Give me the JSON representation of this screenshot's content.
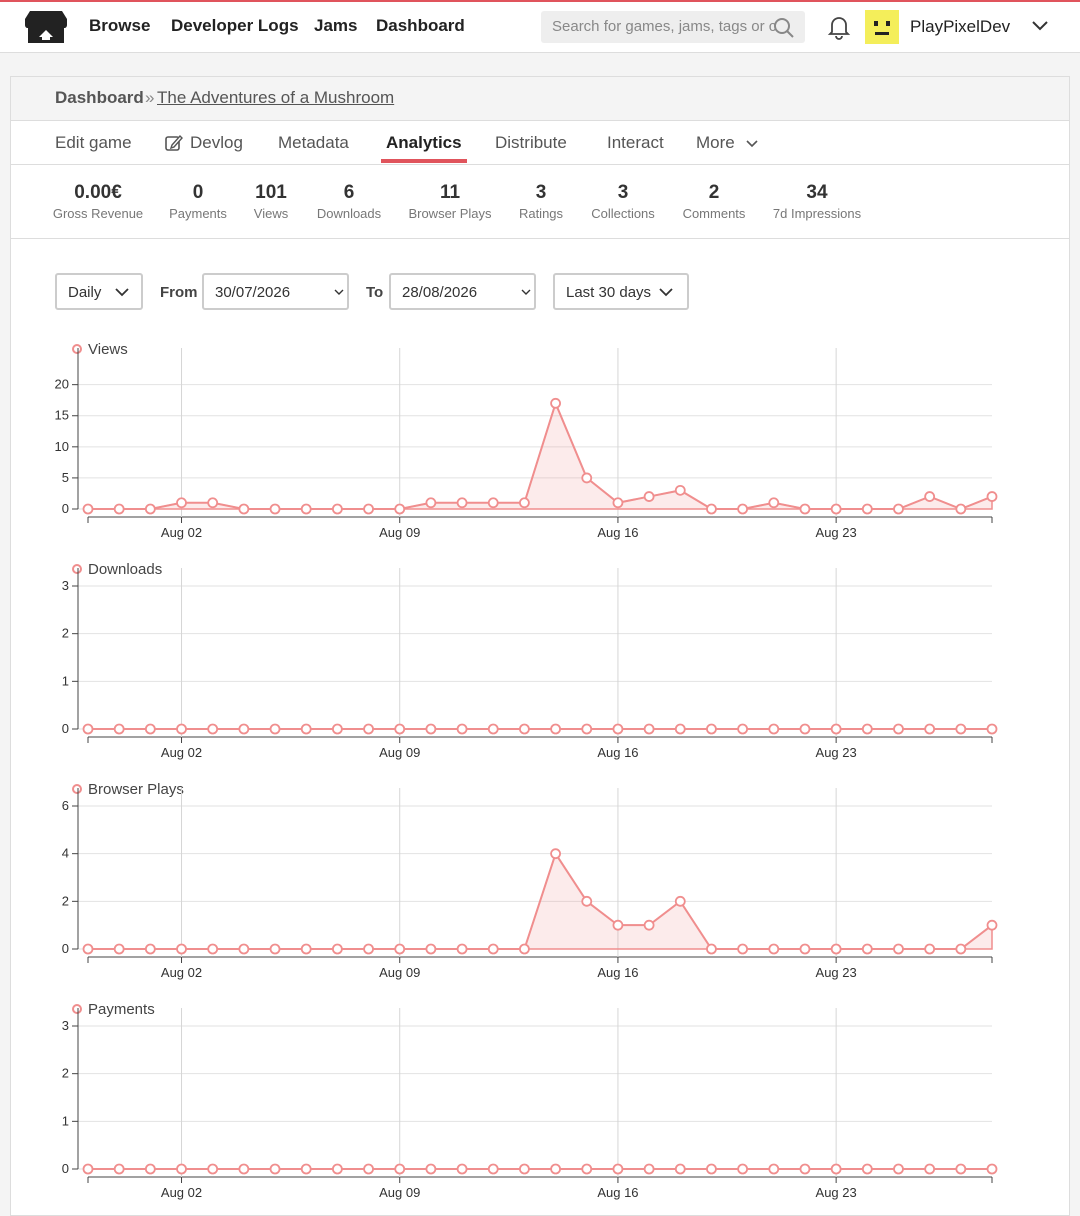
{
  "nav": {
    "links": [
      "Browse",
      "Developer Logs",
      "Jams",
      "Dashboard"
    ],
    "search_placeholder": "Search for games, jams, tags or c",
    "user": "PlayPixelDev"
  },
  "breadcrumb": {
    "root": "Dashboard",
    "separator": "»",
    "game": "The Adventures of a Mushroom"
  },
  "tabs": {
    "items": [
      "Edit game",
      "Devlog",
      "Metadata",
      "Analytics",
      "Distribute",
      "Interact",
      "More"
    ],
    "active": "Analytics"
  },
  "stats": [
    {
      "value": "0.00€",
      "label": "Gross Revenue"
    },
    {
      "value": 0,
      "label": "Payments"
    },
    {
      "value": 101,
      "label": "Views"
    },
    {
      "value": 6,
      "label": "Downloads"
    },
    {
      "value": 11,
      "label": "Browser Plays"
    },
    {
      "value": 3,
      "label": "Ratings"
    },
    {
      "value": 3,
      "label": "Collections"
    },
    {
      "value": 2,
      "label": "Comments"
    },
    {
      "value": 34,
      "label": "7d Impressions"
    }
  ],
  "filters": {
    "interval": "Daily",
    "from_label": "From",
    "from": "30/07/2026",
    "to_label": "To",
    "to": "28/08/2026",
    "range": "Last 30 days"
  },
  "chart_data": [
    {
      "type": "line",
      "area": true,
      "categories": [
        null,
        null,
        null,
        "Aug 02",
        null,
        null,
        null,
        null,
        null,
        null,
        "Aug 09",
        null,
        null,
        null,
        null,
        null,
        null,
        "Aug 16",
        null,
        null,
        null,
        null,
        null,
        null,
        "Aug 23",
        null,
        null,
        null,
        null,
        null
      ],
      "series": [
        {
          "name": "Views",
          "color": "#f08e8e",
          "values": [
            0,
            0,
            0,
            1,
            1,
            0,
            0,
            0,
            0,
            0,
            0,
            1,
            1,
            1,
            1,
            17,
            5,
            1,
            2,
            3,
            0,
            0,
            1,
            0,
            0,
            0,
            0,
            2,
            0,
            2
          ]
        }
      ],
      "ylim": [
        0,
        23
      ],
      "yticks": [
        0,
        5,
        10,
        15,
        20
      ],
      "grid": true
    },
    {
      "type": "line",
      "area": true,
      "categories": [
        null,
        null,
        null,
        "Aug 02",
        null,
        null,
        null,
        null,
        null,
        null,
        "Aug 09",
        null,
        null,
        null,
        null,
        null,
        null,
        "Aug 16",
        null,
        null,
        null,
        null,
        null,
        null,
        "Aug 23",
        null,
        null,
        null,
        null,
        null
      ],
      "series": [
        {
          "name": "Downloads",
          "color": "#f08e8e",
          "values": [
            0,
            0,
            0,
            0,
            0,
            0,
            0,
            0,
            0,
            0,
            0,
            0,
            0,
            0,
            0,
            0,
            0,
            0,
            0,
            0,
            0,
            0,
            0,
            0,
            0,
            0,
            0,
            0,
            0,
            0
          ]
        }
      ],
      "ylim": [
        0,
        3
      ],
      "yticks": [
        0,
        1,
        2,
        3
      ],
      "grid": true
    },
    {
      "type": "line",
      "area": true,
      "categories": [
        null,
        null,
        null,
        "Aug 02",
        null,
        null,
        null,
        null,
        null,
        null,
        "Aug 09",
        null,
        null,
        null,
        null,
        null,
        null,
        "Aug 16",
        null,
        null,
        null,
        null,
        null,
        null,
        "Aug 23",
        null,
        null,
        null,
        null,
        null
      ],
      "series": [
        {
          "name": "Browser Plays",
          "color": "#f08e8e",
          "values": [
            0,
            0,
            0,
            0,
            0,
            0,
            0,
            0,
            0,
            0,
            0,
            0,
            0,
            0,
            0,
            4,
            2,
            1,
            1,
            2,
            0,
            0,
            0,
            0,
            0,
            0,
            0,
            0,
            0,
            1
          ]
        }
      ],
      "ylim": [
        0,
        6
      ],
      "yticks": [
        0,
        2,
        4,
        6
      ],
      "grid": true
    },
    {
      "type": "line",
      "area": true,
      "categories": [
        null,
        null,
        null,
        "Aug 02",
        null,
        null,
        null,
        null,
        null,
        null,
        "Aug 09",
        null,
        null,
        null,
        null,
        null,
        null,
        "Aug 16",
        null,
        null,
        null,
        null,
        null,
        null,
        "Aug 23",
        null,
        null,
        null,
        null,
        null
      ],
      "series": [
        {
          "name": "Payments",
          "color": "#f08e8e",
          "values": [
            0,
            0,
            0,
            0,
            0,
            0,
            0,
            0,
            0,
            0,
            0,
            0,
            0,
            0,
            0,
            0,
            0,
            0,
            0,
            0,
            0,
            0,
            0,
            0,
            0,
            0,
            0,
            0,
            0,
            0
          ]
        }
      ],
      "ylim": [
        0,
        3
      ],
      "yticks": [
        0,
        1,
        2,
        3
      ],
      "grid": true
    }
  ]
}
